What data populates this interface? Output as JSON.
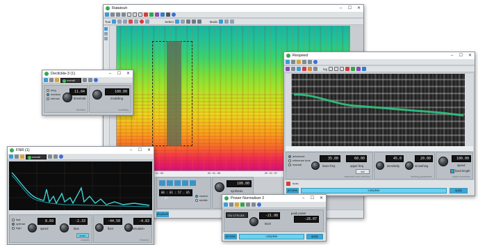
{
  "ratatouh": {
    "title": "Ratatouh",
    "toolbar2": {
      "tool": "Tool",
      "select": "Select",
      "mode": "Mode"
    },
    "ticks": [
      "00 : 01 : 53",
      "00 : 01 : 55",
      "00 : 01 : 57"
    ],
    "transport_time": "00 : 01 : 57 . 05 : 01",
    "rewind_label": "rewind",
    "shuttle_label": "shuttle",
    "synthesis_value": "100.00",
    "synthesis_label": "synthesis",
    "status_label": "playback"
  },
  "respeed": {
    "title": "Respeed",
    "freq_scale": "log",
    "radios": [
      {
        "label": "advanced",
        "on": true
      },
      {
        "label": "reference tone",
        "on": false
      },
      {
        "label": "manual",
        "on": false
      }
    ],
    "lower_freq": {
      "value": "35.00",
      "label": "lower freq"
    },
    "upper_freq": {
      "value": "60.00",
      "label": "upper freq"
    },
    "set_button": "set",
    "section1_label": "reference-tone selection",
    "sensitivity": {
      "value": "45.0",
      "label": "sensitivity"
    },
    "smoothing": {
      "value": "20.00",
      "label": "smoothing"
    },
    "section2_label": "tracking parameters",
    "speed": {
      "value": "100.00",
      "label": "speed"
    },
    "fixed_length_label": "fixed length",
    "section3_label": "speed correction",
    "preview_label": "preview",
    "complete_label": "complete",
    "apply_label": "apply",
    "tools_label": "tools"
  },
  "declickle": {
    "title": "Declickle-3 (1)",
    "preset": "overall",
    "radios": [
      {
        "label": "long",
        "on": false
      },
      {
        "label": "medium",
        "on": true
      },
      {
        "label": "intense",
        "on": false
      }
    ],
    "threshold": {
      "value": "11.04",
      "label": "threshold"
    },
    "modelling": {
      "value": "100.00",
      "label": "modelling"
    },
    "section1_label": "declickle",
    "section2_label": "modelling"
  },
  "fnr": {
    "title": "FNR (1)",
    "preset": "overall",
    "radios": [
      {
        "label": "fast",
        "on": false
      },
      {
        "label": "optimal",
        "on": true
      },
      {
        "label": "high",
        "on": false
      }
    ],
    "speed": {
      "value": "8.69",
      "label": "speed"
    },
    "bias": {
      "value": "-2.33",
      "label": "bias"
    },
    "floor": {
      "value": "-44.50",
      "label": "floor"
    },
    "attenuation": {
      "value": "-4.83",
      "label": "attenuation"
    },
    "learn_label": "learn",
    "section1_label": "analysis",
    "section2_label": "reduction"
  },
  "power": {
    "title": "Power Normaliser 2",
    "preset": "ITU 1770-3/3",
    "level": {
      "value": "-21.98",
      "label": "level"
    },
    "peak_label": "peak power",
    "peak_value": "-28.07",
    "preview_label": "preview",
    "complete_label": "complete",
    "apply_label": "apply"
  }
}
